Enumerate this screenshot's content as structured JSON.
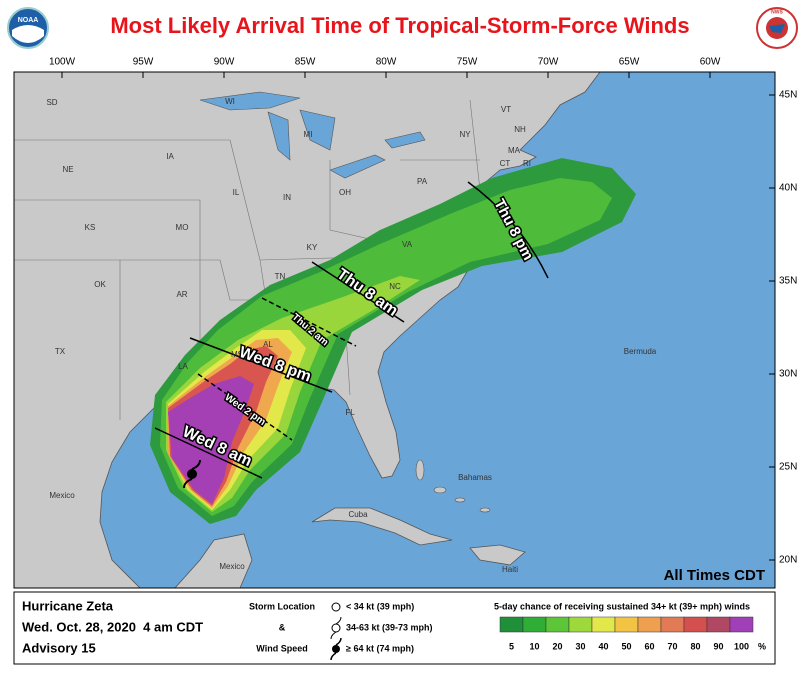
{
  "header": {
    "title": "Most Likely Arrival Time of Tropical-Storm-Force Winds",
    "noaa_logo": "NOAA",
    "nws_logo": "NWS"
  },
  "map": {
    "longitude_labels": [
      "100W",
      "95W",
      "90W",
      "85W",
      "80W",
      "75W",
      "70W",
      "65W",
      "60W"
    ],
    "latitude_labels": [
      "45N",
      "40N",
      "35N",
      "30N",
      "25N",
      "20N"
    ],
    "place_labels": [
      "SD",
      "WI",
      "MI",
      "VT",
      "NH",
      "NY",
      "MA",
      "CT",
      "RI",
      "IA",
      "NE",
      "IL",
      "IN",
      "OH",
      "PA",
      "KS",
      "MO",
      "KY",
      "VA",
      "OK",
      "AR",
      "TN",
      "NC",
      "TX",
      "LA",
      "MS",
      "AL",
      "FL",
      "Mexico",
      "Bahamas",
      "Cuba",
      "Haiti",
      "Mexico",
      "Bermuda"
    ],
    "time_labels": [
      "Thu 8 pm",
      "Thu 8 am",
      "Thu 2 am",
      "Wed 8 pm",
      "Wed 2 pm",
      "Wed 8 am"
    ],
    "note": "All Times CDT"
  },
  "footer": {
    "storm": "Hurricane Zeta",
    "time": "Wed. Oct. 28, 2020  4 am CDT",
    "advisory": "Advisory 15",
    "key_title": [
      "Storm Location",
      "&",
      "Wind Speed"
    ],
    "symbols": [
      "< 34 kt (39 mph)",
      "34-63 kt (39-73 mph)",
      "≥ 64 kt (74 mph)"
    ],
    "probability_title": "5-day chance of receiving sustained 34+ kt (39+ mph) winds",
    "probability_scale": [
      {
        "label": "5",
        "color": "#1f8f3a"
      },
      {
        "label": "10",
        "color": "#2fae35"
      },
      {
        "label": "20",
        "color": "#5cc538"
      },
      {
        "label": "30",
        "color": "#9ed93c"
      },
      {
        "label": "40",
        "color": "#e2e84a"
      },
      {
        "label": "50",
        "color": "#f3c443"
      },
      {
        "label": "60",
        "color": "#eea04e"
      },
      {
        "label": "70",
        "color": "#e27b55"
      },
      {
        "label": "80",
        "color": "#d4504f"
      },
      {
        "label": "90",
        "color": "#b04864"
      },
      {
        "label": "100",
        "color": "#a03fb8"
      }
    ],
    "unit": "%"
  }
}
